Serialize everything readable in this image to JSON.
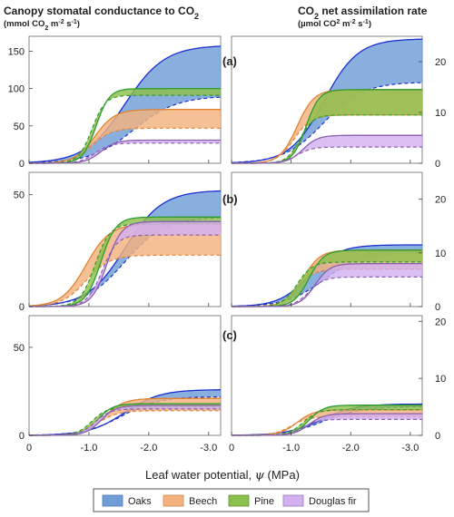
{
  "titles": {
    "left_title": "Canopy stomatal conductance to CO",
    "left_title_sub": "2",
    "left_units": "(mmol CO",
    "left_units_sub": "2",
    "left_units_rest": " m",
    "left_units_sup": "-2",
    "left_units_rest2": " s",
    "left_units_sup2": "-1",
    "left_units_end": ")",
    "right_title_pre": "CO",
    "right_title_sub": "2",
    "right_title_rest": " net assimilation rate",
    "right_units_pre": "(µmol CO",
    "right_units_sup": "2",
    "right_units_rest": " m",
    "right_units_sup2": "-2",
    "right_units_rest2": " s",
    "right_units_sup3": "-1",
    "right_units_end": ")"
  },
  "x_axis": {
    "label_pre": "Leaf water potential, ",
    "label_symbol": "ψ",
    "label_post": " (MPa)",
    "ticks": [
      0,
      -1,
      -2,
      -3
    ],
    "tick_labels": [
      "0",
      "-1.0",
      "-2.0",
      "-3.0"
    ],
    "xlim": [
      0,
      -3.2
    ]
  },
  "panel_labels": [
    "(a)",
    "(b)",
    "(c)"
  ],
  "legend": [
    {
      "label": "Oaks",
      "color": "#6f9ed8"
    },
    {
      "label": "Beech",
      "color": "#f3b27e"
    },
    {
      "label": "Pine",
      "color": "#8cc04c"
    },
    {
      "label": "Douglas fir",
      "color": "#d3b0ef"
    }
  ],
  "colors": {
    "oaks_line": "#1f2fcf",
    "beech_line": "#e08432",
    "pine_line": "#2e9b2e",
    "fir_line": "#8a5fb0"
  },
  "chart_data": [
    {
      "type": "area",
      "panel": "a",
      "side": "left",
      "ylim": [
        0,
        170
      ],
      "ticks": [
        0,
        50,
        100,
        150
      ],
      "series": [
        {
          "name": "Oaks",
          "upper": 158,
          "lower": 90,
          "upper_mid": -1.6,
          "lower_mid": -1.75,
          "upper_k": 3.0,
          "lower_k": 2.8
        },
        {
          "name": "Beech",
          "upper": 72,
          "lower": 47,
          "upper_mid": -1.1,
          "lower_mid": -1.05,
          "upper_k": 6,
          "lower_k": 6
        },
        {
          "name": "Pine",
          "upper": 100,
          "lower": 91,
          "upper_mid": -1.12,
          "lower_mid": -1.05,
          "upper_k": 9,
          "lower_k": 9
        },
        {
          "name": "Douglas fir",
          "upper": 31,
          "lower": 27,
          "upper_mid": -1.2,
          "lower_mid": -1.1,
          "upper_k": 8,
          "lower_k": 8
        }
      ]
    },
    {
      "type": "area",
      "panel": "a",
      "side": "right",
      "ylim": [
        0,
        25
      ],
      "ticks": [
        0,
        10,
        20
      ],
      "series": [
        {
          "name": "Oaks",
          "upper": 24.5,
          "lower": 16,
          "upper_mid": -1.55,
          "lower_mid": -1.55,
          "upper_k": 3.5,
          "lower_k": 3.0
        },
        {
          "name": "Beech",
          "upper": 14.5,
          "lower": 9.5,
          "upper_mid": -1.1,
          "lower_mid": -1.05,
          "upper_k": 7,
          "lower_k": 7
        },
        {
          "name": "Pine",
          "upper": 14.5,
          "lower": 9.5,
          "upper_mid": -1.25,
          "lower_mid": -1.15,
          "upper_k": 9,
          "lower_k": 9
        },
        {
          "name": "Douglas fir",
          "upper": 5.5,
          "lower": 3.2,
          "upper_mid": -1.2,
          "lower_mid": -1.1,
          "upper_k": 8,
          "lower_k": 8
        }
      ]
    },
    {
      "type": "area",
      "panel": "b",
      "side": "left",
      "ylim": [
        0,
        60
      ],
      "ticks": [
        0,
        50
      ],
      "series": [
        {
          "name": "Oaks",
          "upper": 52,
          "lower": 40,
          "upper_mid": -1.6,
          "lower_mid": -1.6,
          "upper_k": 3.2,
          "lower_k": 3.0
        },
        {
          "name": "Beech",
          "upper": 37,
          "lower": 23,
          "upper_mid": -0.95,
          "lower_mid": -0.95,
          "upper_k": 5,
          "lower_k": 5
        },
        {
          "name": "Pine",
          "upper": 40,
          "lower": 37,
          "upper_mid": -1.2,
          "lower_mid": -1.1,
          "upper_k": 8,
          "lower_k": 8
        },
        {
          "name": "Douglas fir",
          "upper": 38,
          "lower": 32,
          "upper_mid": -1.3,
          "lower_mid": -1.22,
          "upper_k": 8,
          "lower_k": 8
        }
      ]
    },
    {
      "type": "area",
      "panel": "b",
      "side": "right",
      "ylim": [
        0,
        25
      ],
      "ticks": [
        0,
        10,
        20
      ],
      "series": [
        {
          "name": "Oaks",
          "upper": 11.5,
          "lower": 10,
          "upper_mid": -1.3,
          "lower_mid": -1.55,
          "upper_k": 4.0,
          "lower_k": 3.2
        },
        {
          "name": "Beech",
          "upper": 10.5,
          "lower": 7,
          "upper_mid": -1.2,
          "lower_mid": -1.1,
          "upper_k": 7,
          "lower_k": 7
        },
        {
          "name": "Pine",
          "upper": 10.5,
          "lower": 8.3,
          "upper_mid": -1.3,
          "lower_mid": -1.1,
          "upper_k": 8,
          "lower_k": 8
        },
        {
          "name": "Douglas fir",
          "upper": 8,
          "lower": 5.5,
          "upper_mid": -1.4,
          "lower_mid": -1.3,
          "upper_k": 8,
          "lower_k": 8
        }
      ]
    },
    {
      "type": "area",
      "panel": "c",
      "side": "left",
      "ylim": [
        0,
        68
      ],
      "ticks": [
        0,
        50
      ],
      "series": [
        {
          "name": "Oaks",
          "upper": 26,
          "lower": 22,
          "upper_mid": -1.6,
          "lower_mid": -1.55,
          "upper_k": 3.4,
          "lower_k": 3.2
        },
        {
          "name": "Beech",
          "upper": 21,
          "lower": 14,
          "upper_mid": -1.25,
          "lower_mid": -1.15,
          "upper_k": 6,
          "lower_k": 6
        },
        {
          "name": "Pine",
          "upper": 18,
          "lower": 16,
          "upper_mid": -1.15,
          "lower_mid": -1.05,
          "upper_k": 8,
          "lower_k": 8
        },
        {
          "name": "Douglas fir",
          "upper": 17,
          "lower": 15,
          "upper_mid": -1.2,
          "lower_mid": -1.1,
          "upper_k": 8,
          "lower_k": 8
        }
      ]
    },
    {
      "type": "area",
      "panel": "c",
      "side": "right",
      "ylim": [
        0,
        21
      ],
      "ticks": [
        0,
        10,
        20
      ],
      "series": [
        {
          "name": "Oaks",
          "upper": 5.5,
          "lower": 5,
          "upper_mid": -1.5,
          "lower_mid": -1.55,
          "upper_k": 3.5,
          "lower_k": 3.2
        },
        {
          "name": "Beech",
          "upper": 4.5,
          "lower": 3.3,
          "upper_mid": -1.1,
          "lower_mid": -1.0,
          "upper_k": 7,
          "lower_k": 7
        },
        {
          "name": "Pine",
          "upper": 5.3,
          "lower": 4.5,
          "upper_mid": -1.3,
          "lower_mid": -1.2,
          "upper_k": 8,
          "lower_k": 8
        },
        {
          "name": "Douglas fir",
          "upper": 3.8,
          "lower": 2.8,
          "upper_mid": -1.3,
          "lower_mid": -1.2,
          "upper_k": 8,
          "lower_k": 8
        }
      ]
    }
  ]
}
